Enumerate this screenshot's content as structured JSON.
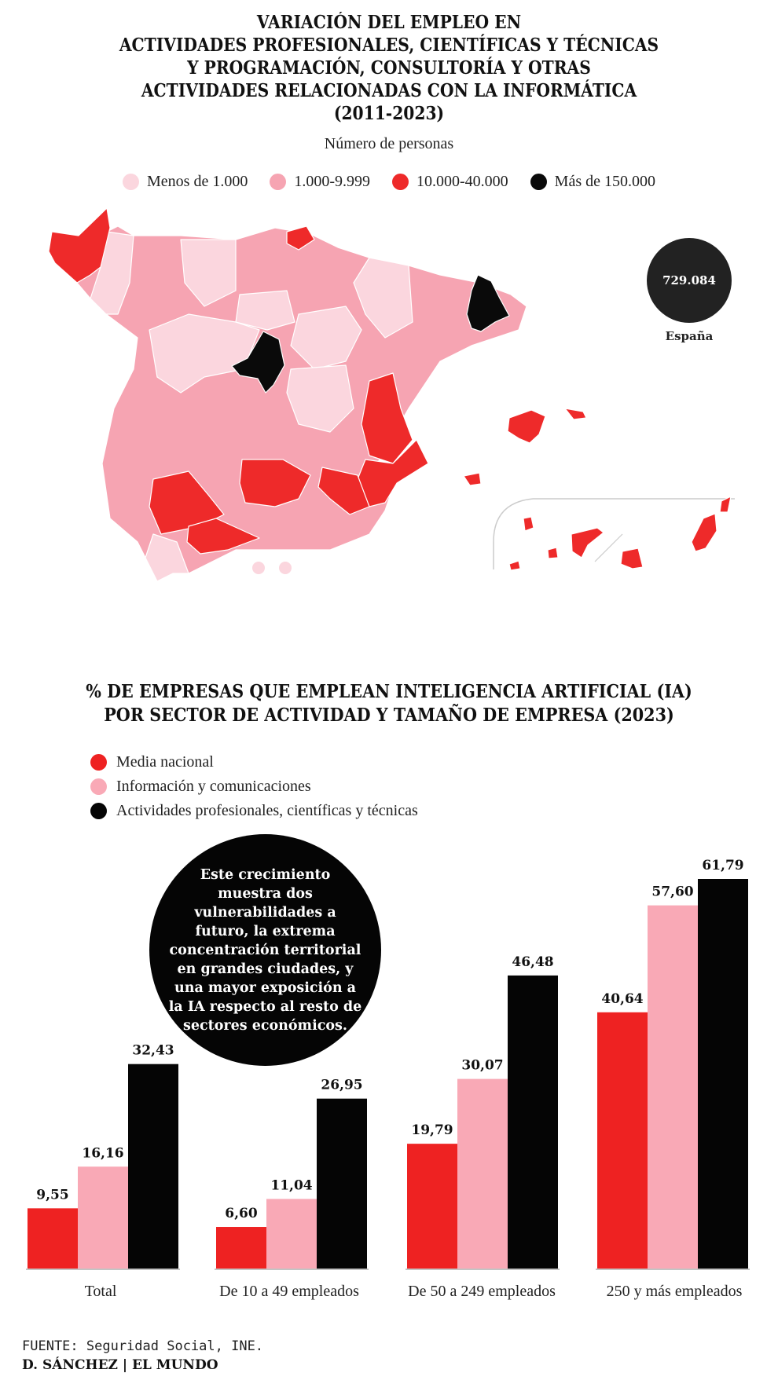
{
  "map_section": {
    "title_lines": [
      "VARIACIÓN DEL EMPLEO EN",
      "ACTIVIDADES PROFESIONALES, CIENTÍFICAS Y TÉCNICAS",
      "Y PROGRAMACIÓN, CONSULTORÍA Y OTRAS",
      "ACTIVIDADES RELACIONADAS CON LA INFORMÁTICA",
      "(2011-2023)"
    ],
    "subtitle": "Número de personas",
    "legend": [
      {
        "label": "Menos de 1.000",
        "color": "#fbd6de"
      },
      {
        "label": "1.000-9.999",
        "color": "#f6a4b2"
      },
      {
        "label": "10.000-40.000",
        "color": "#ee2a2a"
      },
      {
        "label": "Más de 150.000",
        "color": "#0a0a0a"
      }
    ],
    "spain_total": {
      "value": "729.084",
      "label": "España"
    }
  },
  "chart_data": {
    "type": "bar",
    "title": "% DE EMPRESAS QUE EMPLEAN INTELIGENCIA ARTIFICIAL (IA) POR SECTOR DE ACTIVIDAD Y TAMAÑO DE EMPRESA (2023)",
    "title_lines": [
      "% DE EMPRESAS QUE EMPLEAN INTELIGENCIA ARTIFICIAL (IA)",
      "POR SECTOR DE ACTIVIDAD Y TAMAÑO DE EMPRESA (2023)"
    ],
    "categories": [
      "Total",
      "De 10 a 49 empleados",
      "De 50 a 249 empleados",
      "250 y más empleados"
    ],
    "series": [
      {
        "name": "Media nacional",
        "color": "#ee2222",
        "values": [
          9.55,
          6.6,
          19.79,
          40.64
        ],
        "labels": [
          "9,55",
          "6,60",
          "19,79",
          "40,64"
        ]
      },
      {
        "name": "Información y comunicaciones",
        "color": "#f9a9b6",
        "values": [
          16.16,
          11.04,
          30.07,
          57.6
        ],
        "labels": [
          "16,16",
          "11,04",
          "30,07",
          "57,60"
        ]
      },
      {
        "name": "Actividades profesionales, científicas y técnicas",
        "color": "#050505",
        "values": [
          32.43,
          26.95,
          46.48,
          61.79
        ],
        "labels": [
          "32,43",
          "26,95",
          "46,48",
          "61,79"
        ]
      }
    ],
    "ylim": [
      0,
      61.79
    ],
    "grid": false,
    "legend_position": "top-left"
  },
  "annotation": "Este crecimiento muestra dos vulnerabilidades a futuro, la extrema concentración territorial en grandes ciudades, y una mayor exposición a la IA respecto al resto de sectores económicos.",
  "footer": {
    "source": "FUENTE: Seguridad Social, INE.",
    "credit": "D. SÁNCHEZ | EL MUNDO"
  }
}
